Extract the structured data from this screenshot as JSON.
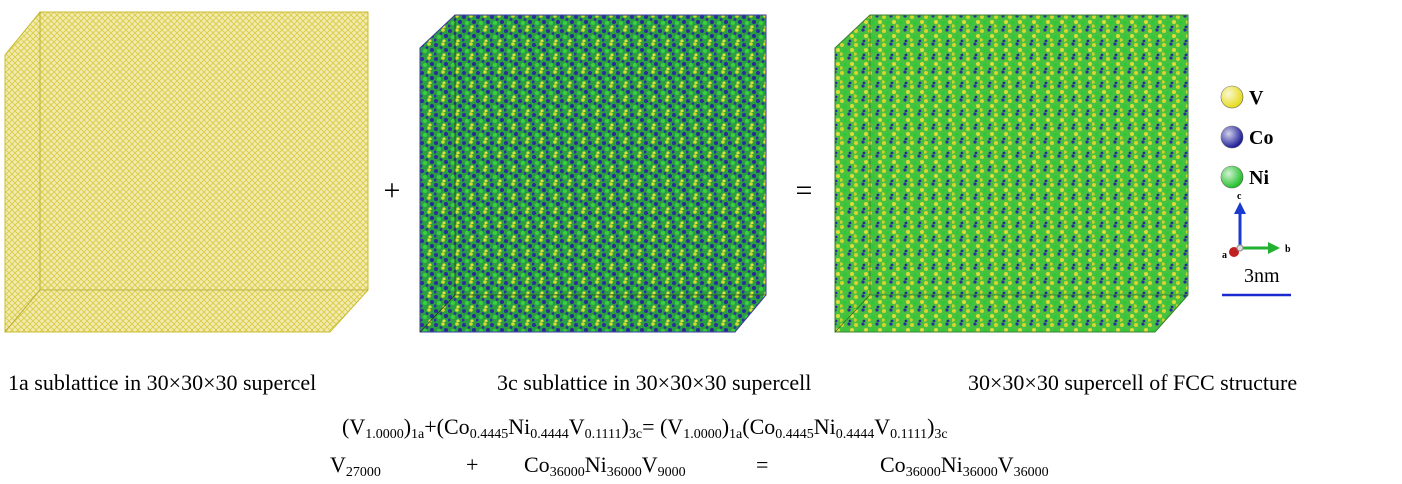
{
  "captions": [
    "1a sublattice in 30×30×30 supercel",
    "3c sublattice in 30×30×30 supercell",
    "30×30×30 supercell of FCC structure"
  ],
  "operators": [
    "+",
    "="
  ],
  "legend": [
    {
      "label": "V",
      "color": "#e6dc1e"
    },
    {
      "label": "Co",
      "color": "#1e1e9a"
    },
    {
      "label": "Ni",
      "color": "#22c02a"
    }
  ],
  "axes": [
    "c",
    "b",
    "a"
  ],
  "scale_bar": "3nm",
  "formula": [
    {
      "text": "(V",
      "sub": "1.0000"
    },
    {
      "text": ")",
      "sub": "1a"
    },
    {
      "text": "+(Co",
      "sub": "0.4445"
    },
    {
      "text": "Ni",
      "sub": "0.4444"
    },
    {
      "text": "V",
      "sub": "0.1111"
    },
    {
      "text": ")",
      "sub": "3c"
    },
    {
      "text": "= (V",
      "sub": "1.0000"
    },
    {
      "text": ")",
      "sub": "1a"
    },
    {
      "text": "(Co",
      "sub": "0.4445"
    },
    {
      "text": "Ni",
      "sub": "0.4444"
    },
    {
      "text": "V",
      "sub": "0.1111"
    },
    {
      "text": ")",
      "sub": "3c"
    }
  ],
  "stoichiometry": {
    "left": [
      {
        "text": "V",
        "sub": "27000"
      }
    ],
    "plus": "+",
    "middle": [
      {
        "text": "Co",
        "sub": "36000"
      },
      {
        "text": "Ni",
        "sub": "36000"
      },
      {
        "text": "V",
        "sub": "9000"
      }
    ],
    "equals": "=",
    "right": [
      {
        "text": "Co",
        "sub": "36000"
      },
      {
        "text": "Ni",
        "sub": "36000"
      },
      {
        "text": "V",
        "sub": "36000"
      }
    ]
  }
}
